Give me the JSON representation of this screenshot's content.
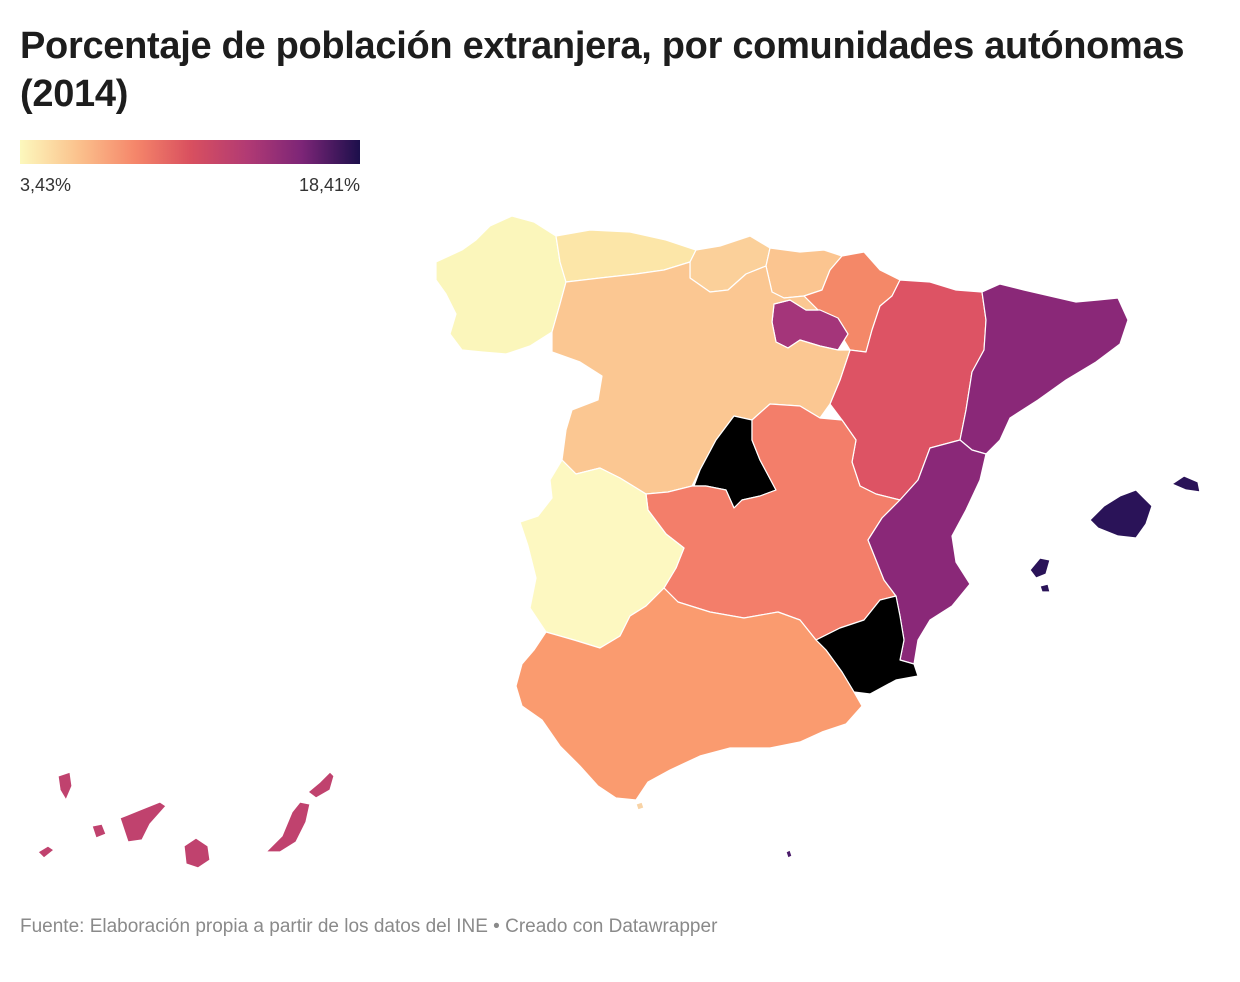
{
  "title": "Porcentaje de población extranjera, por comunidades autónomas (2014)",
  "legend": {
    "min_label": "3,43%",
    "max_label": "18,41%",
    "min_value": 3.43,
    "max_value": 18.41,
    "scale_colors": [
      "#fcf8bd",
      "#fbc28d",
      "#f5866a",
      "#d9505f",
      "#b13a74",
      "#7c2577",
      "#1c0f4b"
    ]
  },
  "regions": [
    {
      "name": "Galicia",
      "color": "#fbf6bb"
    },
    {
      "name": "Asturias",
      "color": "#fce6a8"
    },
    {
      "name": "Cantabria",
      "color": "#fbd09a"
    },
    {
      "name": "País Vasco",
      "color": "#fbc590"
    },
    {
      "name": "Navarra",
      "color": "#f48868"
    },
    {
      "name": "La Rioja",
      "color": "#a4357a"
    },
    {
      "name": "Aragón",
      "color": "#dd5364"
    },
    {
      "name": "Cataluña",
      "color": "#8a2878"
    },
    {
      "name": "Castilla y León",
      "color": "#fbc792"
    },
    {
      "name": "Comunidad de Madrid",
      "color": "#a1347a"
    },
    {
      "name": "Castilla-La Mancha",
      "color": "#f37e6a"
    },
    {
      "name": "Extremadura",
      "color": "#fdf8c1"
    },
    {
      "name": "Comunitat Valenciana",
      "color": "#8a2878"
    },
    {
      "name": "Región de Murcia",
      "color": "#8a2878"
    },
    {
      "name": "Andalucía",
      "color": "#fa9b6f"
    },
    {
      "name": "Illes Balears",
      "color": "#2a1358"
    },
    {
      "name": "Canarias",
      "color": "#c0426e"
    },
    {
      "name": "Ceuta",
      "color": "#f8d3a6"
    },
    {
      "name": "Melilla",
      "color": "#4a1a6a"
    }
  ],
  "footer": {
    "source": "Fuente: Elaboración propia a partir de los datos del INE",
    "separator": " • ",
    "credit": "Creado con Datawrapper"
  }
}
